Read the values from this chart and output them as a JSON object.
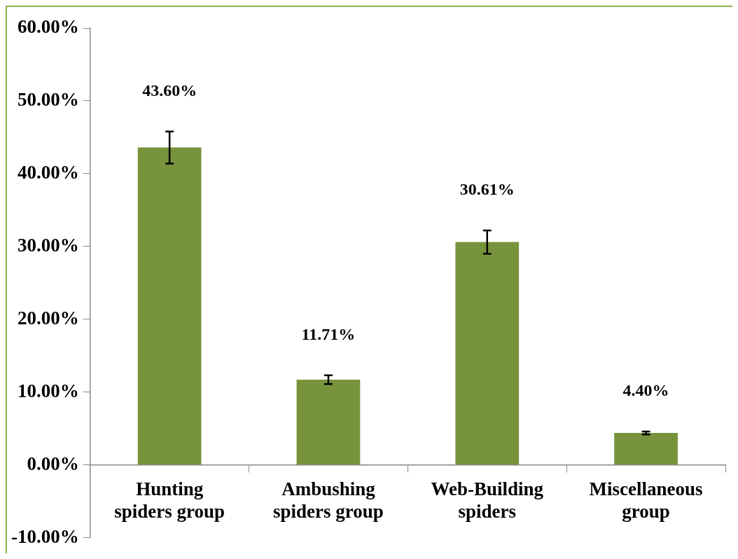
{
  "chart_data": {
    "type": "bar",
    "categories": [
      "Hunting spiders group",
      "Ambushing spiders group",
      "Web-Building spiders",
      "Miscellaneous group"
    ],
    "values": [
      43.6,
      11.71,
      30.61,
      4.4
    ],
    "errors": [
      2.2,
      0.6,
      1.6,
      0.2
    ],
    "value_labels": [
      "43.60%",
      "11.71%",
      "30.61%",
      "4.40%"
    ],
    "color": "#77933c",
    "ylim": [
      -10,
      60
    ],
    "yticks": [
      {
        "value": -10,
        "label": "-10.00%"
      },
      {
        "value": 0,
        "label": "0.00%"
      },
      {
        "value": 10,
        "label": "10.00%"
      },
      {
        "value": 20,
        "label": "20.00%"
      },
      {
        "value": 30,
        "label": "30.00%"
      },
      {
        "value": 40,
        "label": "40.00%"
      },
      {
        "value": 50,
        "label": "50.00%"
      },
      {
        "value": 60,
        "label": "60.00%"
      }
    ],
    "grid": false,
    "legend": false
  }
}
